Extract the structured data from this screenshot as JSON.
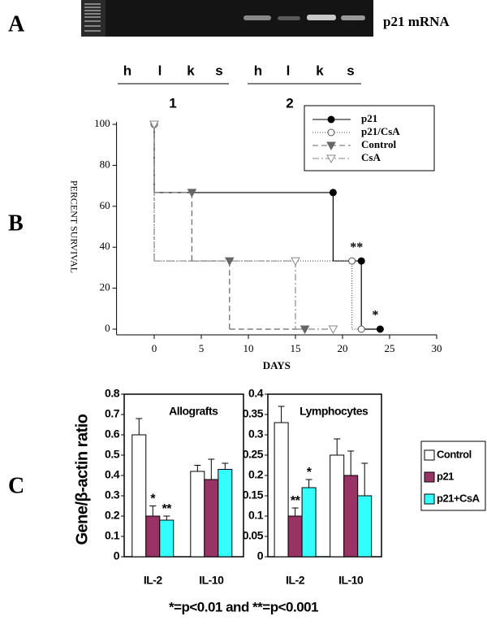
{
  "figure": {
    "panels": [
      "A",
      "B",
      "C"
    ],
    "gel": {
      "label": "p21 mRNA",
      "lanes": [
        "h",
        "l",
        "k",
        "s",
        "h",
        "l",
        "k",
        "s"
      ],
      "groups": [
        "1",
        "2"
      ]
    },
    "footnote": "*=p<0.01 and **=p<0.001"
  },
  "chart_data": [
    {
      "type": "step",
      "xlabel": "DAYS",
      "ylabel": "PERCENT SURVIVAL",
      "xlim": [
        -4,
        30
      ],
      "xticks": [
        0,
        5,
        10,
        15,
        20,
        25,
        30
      ],
      "ylim": [
        0,
        100
      ],
      "yticks": [
        0,
        20,
        40,
        60,
        80,
        100
      ],
      "series": [
        {
          "name": "p21",
          "color": "#000000",
          "dash": "none",
          "marker": "circle",
          "filled": true,
          "x": [
            0,
            19,
            22,
            24
          ],
          "values": [
            100,
            66.7,
            33.3,
            0
          ],
          "significance": [
            null,
            null,
            "**",
            "*"
          ]
        },
        {
          "name": "p21/CsA",
          "color": "#555555",
          "dash": "1,2",
          "marker": "circle",
          "filled": false,
          "x": [
            0,
            21,
            22
          ],
          "values": [
            100,
            33.3,
            0
          ]
        },
        {
          "name": "Control",
          "color": "#666666",
          "dash": "7,4",
          "marker": "triangle",
          "filled": true,
          "x": [
            0,
            4,
            8,
            16
          ],
          "values": [
            100,
            66.7,
            33.3,
            0
          ]
        },
        {
          "name": "CsA",
          "color": "#888888",
          "dash": "8,3,2,3",
          "marker": "triangle",
          "filled": false,
          "x": [
            0,
            15,
            19
          ],
          "values": [
            100,
            33.3,
            0
          ]
        }
      ]
    },
    {
      "type": "bar",
      "title": "Allografts",
      "ylabel": "Gene/β-actin ratio",
      "categories": [
        "IL-2",
        "IL-10"
      ],
      "ylim": [
        0,
        0.8
      ],
      "yticks": [
        0,
        0.1,
        0.2,
        0.3,
        0.4,
        0.5,
        0.6,
        0.7,
        0.8
      ],
      "series": [
        {
          "color": "#ffffff",
          "values": [
            0.6,
            0.42
          ],
          "errors": [
            0.08,
            0.03
          ]
        },
        {
          "color": "#993366",
          "values": [
            0.2,
            0.38
          ],
          "errors": [
            0.05,
            0.1
          ],
          "significance": [
            "*",
            null
          ]
        },
        {
          "color": "#33ffff",
          "values": [
            0.18,
            0.43
          ],
          "errors": [
            0.02,
            0.03
          ],
          "significance": [
            "**",
            null
          ]
        }
      ]
    },
    {
      "type": "bar",
      "title": "Lymphocytes",
      "categories": [
        "IL-2",
        "IL-10"
      ],
      "ylim": [
        0,
        0.4
      ],
      "yticks": [
        0,
        0.05,
        0.1,
        0.15,
        0.2,
        0.25,
        0.3,
        0.35,
        0.4
      ],
      "series": [
        {
          "name": "Control",
          "color": "#ffffff",
          "values": [
            0.33,
            0.25
          ],
          "errors": [
            0.04,
            0.04
          ]
        },
        {
          "name": "p21",
          "color": "#993366",
          "values": [
            0.1,
            0.2
          ],
          "errors": [
            0.02,
            0.06
          ],
          "significance": [
            "**",
            null
          ]
        },
        {
          "name": "p21+CsA",
          "color": "#33ffff",
          "values": [
            0.17,
            0.15
          ],
          "errors": [
            0.02,
            0.08
          ],
          "significance": [
            "*",
            null
          ]
        }
      ]
    }
  ]
}
